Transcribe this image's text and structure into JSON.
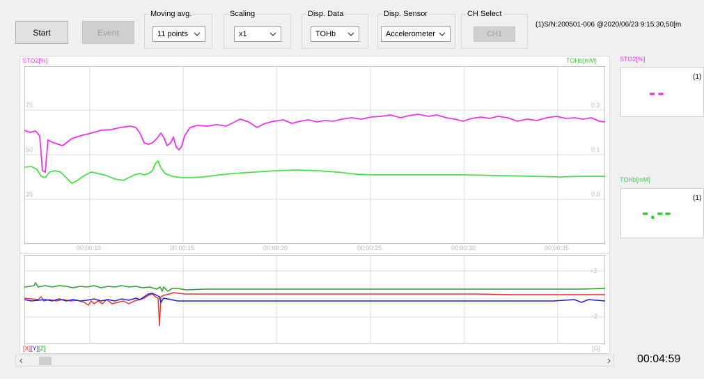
{
  "toolbar": {
    "start_label": "Start",
    "event_label": "Event",
    "moving_avg": {
      "label": "Moving avg.",
      "value": "11 points"
    },
    "scaling": {
      "label": "Scaling",
      "value": "x1"
    },
    "disp_data": {
      "label": "Disp. Data",
      "value": "TOHb"
    },
    "disp_sensor": {
      "label": "Disp. Sensor",
      "value": "Accelerometer"
    },
    "ch_select": {
      "label": "CH Select",
      "value": "CH1"
    },
    "info": "(1)S/N:200501-006 @2020/06/23 9:15:30,50[m"
  },
  "top_chart": {
    "left_axis_label": "STO2[%]",
    "right_axis_label": "TOHb[mM]",
    "left_ticks": [
      "75",
      "50",
      "25"
    ],
    "right_ticks": [
      "0.2",
      "0.1",
      "0.0"
    ],
    "x_ticks": [
      "00:00:10",
      "00:00:15",
      "00:00:20",
      "00:00:25",
      "00:00:30",
      "00:00:35"
    ]
  },
  "bottom_chart": {
    "axis_label_x": "[X]",
    "axis_label_y": "[Y]",
    "axis_label_z": "[Z]",
    "right_ticks": [
      "+2",
      "-2"
    ],
    "unit": "[G]"
  },
  "side": {
    "sto2_label": "STO2[%]",
    "sto2_channel": "(1)",
    "sto2_value": "--",
    "tohb_label": "TOHb[mM]",
    "tohb_channel": "(1)",
    "tohb_value": "-.--"
  },
  "elapsed_time": "00:04:59",
  "colors": {
    "sto2": "#ee30ee",
    "tohb": "#46e046",
    "accel_x": "#f03030",
    "accel_y": "#1a1ae0",
    "accel_z": "#2e9a2e"
  }
}
